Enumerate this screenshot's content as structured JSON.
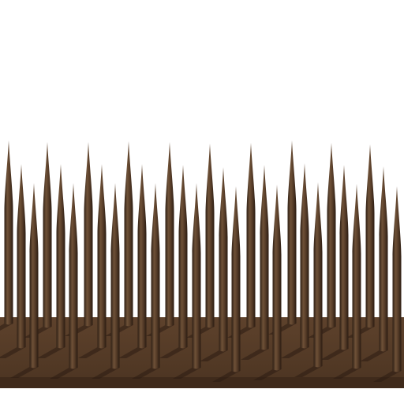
{
  "scene": {
    "subject": "spike-row-render",
    "colors": {
      "background": "#ffffff",
      "spike_light": "#6e5138",
      "spike_mid": "#4a3424",
      "spike_dark": "#2e1f14",
      "base_top": "#5a3f2a",
      "base_front": "#3f2a1b",
      "shadow": "#2b1c12"
    }
  }
}
